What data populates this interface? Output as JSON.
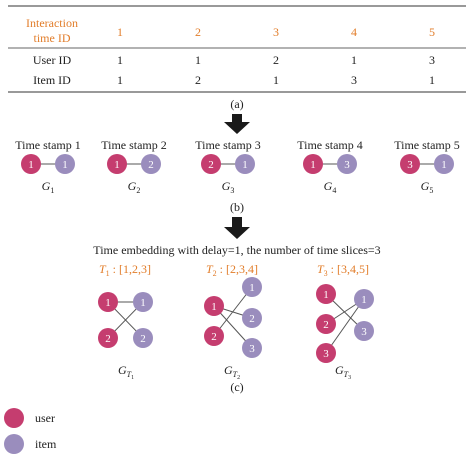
{
  "colors": {
    "user": "#c53d6f",
    "item": "#9a8dbd",
    "header_text": "#e27d2a",
    "edge": "#555555",
    "arrow": "#1a1a1a"
  },
  "table": {
    "header_label_line1": "Interaction",
    "header_label_line2": "time ID",
    "header_values": [
      "1",
      "2",
      "3",
      "4",
      "5"
    ],
    "rows": [
      {
        "label": "User ID",
        "values": [
          "1",
          "1",
          "2",
          "1",
          "3"
        ]
      },
      {
        "label": "Item ID",
        "values": [
          "1",
          "2",
          "1",
          "3",
          "1"
        ]
      }
    ],
    "caption": "(a)"
  },
  "snapshots": {
    "items": [
      {
        "title": "Time stamp 1",
        "user": "1",
        "item": "1",
        "graph_base": "G",
        "graph_sub": "1"
      },
      {
        "title": "Time stamp 2",
        "user": "1",
        "item": "2",
        "graph_base": "G",
        "graph_sub": "2"
      },
      {
        "title": "Time stamp 3",
        "user": "2",
        "item": "1",
        "graph_base": "G",
        "graph_sub": "3"
      },
      {
        "title": "Time stamp 4",
        "user": "1",
        "item": "3",
        "graph_base": "G",
        "graph_sub": "4"
      },
      {
        "title": "Time stamp 5",
        "user": "3",
        "item": "1",
        "graph_base": "G",
        "graph_sub": "5"
      }
    ],
    "caption": "(b)"
  },
  "embedding": {
    "title": "Time embedding with delay=1, the number of time slices=3",
    "slices": [
      {
        "label_base": "T",
        "label_sub": "1",
        "label_rest": " : [1,2,3]",
        "users": [
          "1",
          "2"
        ],
        "items": [
          "1",
          "2"
        ],
        "edges": [
          [
            "1",
            "1"
          ],
          [
            "1",
            "2"
          ],
          [
            "2",
            "1"
          ]
        ],
        "graph_base": "G",
        "graph_sub": "T",
        "graph_subsub": "1"
      },
      {
        "label_base": "T",
        "label_sub": "2",
        "label_rest": " : [2,3,4]",
        "users": [
          "1",
          "2"
        ],
        "items": [
          "1",
          "2",
          "3"
        ],
        "edges": [
          [
            "1",
            "2"
          ],
          [
            "2",
            "1"
          ],
          [
            "1",
            "3"
          ]
        ],
        "graph_base": "G",
        "graph_sub": "T",
        "graph_subsub": "2"
      },
      {
        "label_base": "T",
        "label_sub": "3",
        "label_rest": " : [3,4,5]",
        "users": [
          "1",
          "2",
          "3"
        ],
        "items": [
          "1",
          "3"
        ],
        "edges": [
          [
            "2",
            "1"
          ],
          [
            "1",
            "3"
          ],
          [
            "3",
            "1"
          ]
        ],
        "graph_base": "G",
        "graph_sub": "T",
        "graph_subsub": "3"
      }
    ],
    "caption": "(c)"
  },
  "legend": [
    {
      "kind": "user",
      "label": "user"
    },
    {
      "kind": "item",
      "label": "item"
    }
  ]
}
